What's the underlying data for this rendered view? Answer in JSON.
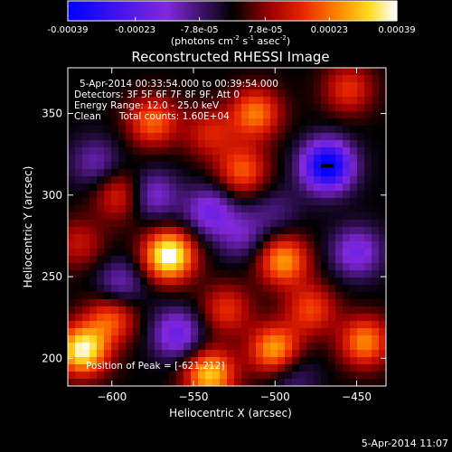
{
  "colorbar": {
    "ticks": [
      "-0.00039",
      "-0.00023",
      "-7.8e-05",
      "7.8e-05",
      "0.00023",
      "0.00039"
    ],
    "tick_values": [
      -0.00039,
      -0.00023,
      -7.8e-05,
      7.8e-05,
      0.00023,
      0.00039
    ],
    "range": [
      -0.00039,
      0.00039
    ],
    "units_text": "(photons cm",
    "units_exp1": "-2",
    "units_mid": " s",
    "units_exp2": "-1",
    "units_tail": " asec",
    "units_exp3": "-2",
    "units_close": ")"
  },
  "chart_data": {
    "type": "heatmap",
    "title": "Reconstructed RHESSI Image",
    "xlabel": "Heliocentric X (arcsec)",
    "ylabel": "Heliocentric Y (arcsec)",
    "xlim": [
      -627,
      -432
    ],
    "ylim": [
      183,
      378
    ],
    "xticks": [
      -600,
      -550,
      -500,
      -450
    ],
    "yticks": [
      200,
      250,
      300,
      350
    ],
    "xtick_labels": [
      "−600",
      "−550",
      "−500",
      "−450"
    ],
    "ytick_labels": [
      "200",
      "250",
      "300",
      "350"
    ],
    "sources": [
      {
        "x": -565,
        "y": 263,
        "value": 0.00039
      },
      {
        "x": -618,
        "y": 205,
        "value": 0.00036
      },
      {
        "x": -495,
        "y": 260,
        "value": 0.00026
      },
      {
        "x": -575,
        "y": 345,
        "value": 0.00021
      },
      {
        "x": -512,
        "y": 350,
        "value": 0.00023
      },
      {
        "x": -520,
        "y": 315,
        "value": 0.0002
      },
      {
        "x": -500,
        "y": 205,
        "value": 0.00028
      },
      {
        "x": -540,
        "y": 190,
        "value": 0.0003
      },
      {
        "x": -445,
        "y": 210,
        "value": 0.00024
      },
      {
        "x": -478,
        "y": 230,
        "value": 0.00018
      },
      {
        "x": -530,
        "y": 230,
        "value": 0.00016
      },
      {
        "x": -600,
        "y": 225,
        "value": 0.0002
      },
      {
        "x": -595,
        "y": 300,
        "value": 0.00016
      },
      {
        "x": -540,
        "y": 338,
        "value": 0.00014
      },
      {
        "x": -620,
        "y": 270,
        "value": 0.00012
      },
      {
        "x": -455,
        "y": 365,
        "value": 0.00016
      },
      {
        "x": -468,
        "y": 318,
        "value": -0.00039
      },
      {
        "x": -450,
        "y": 265,
        "value": -0.00018
      },
      {
        "x": -560,
        "y": 215,
        "value": -0.0002
      },
      {
        "x": -595,
        "y": 245,
        "value": -0.00014
      },
      {
        "x": -610,
        "y": 320,
        "value": -0.00012
      },
      {
        "x": -575,
        "y": 300,
        "value": -0.00016
      },
      {
        "x": -540,
        "y": 290,
        "value": -0.00018
      },
      {
        "x": -520,
        "y": 275,
        "value": -0.00012
      },
      {
        "x": -490,
        "y": 190,
        "value": -0.0001
      },
      {
        "x": -500,
        "y": 290,
        "value": -8e-05
      }
    ],
    "annotations": [
      "5-Apr-2014 00:33:54.000 to 00:39:54.000",
      "Detectors: 3F 5F 6F 7F 8F 9F, Att 0",
      "Energy Range: 12.0 - 25.0 keV",
      "Clean      Total counts: 1.60E+04",
      "Position of Peak = [-621,212]"
    ]
  },
  "footer_timestamp": "5-Apr-2014 11:07"
}
